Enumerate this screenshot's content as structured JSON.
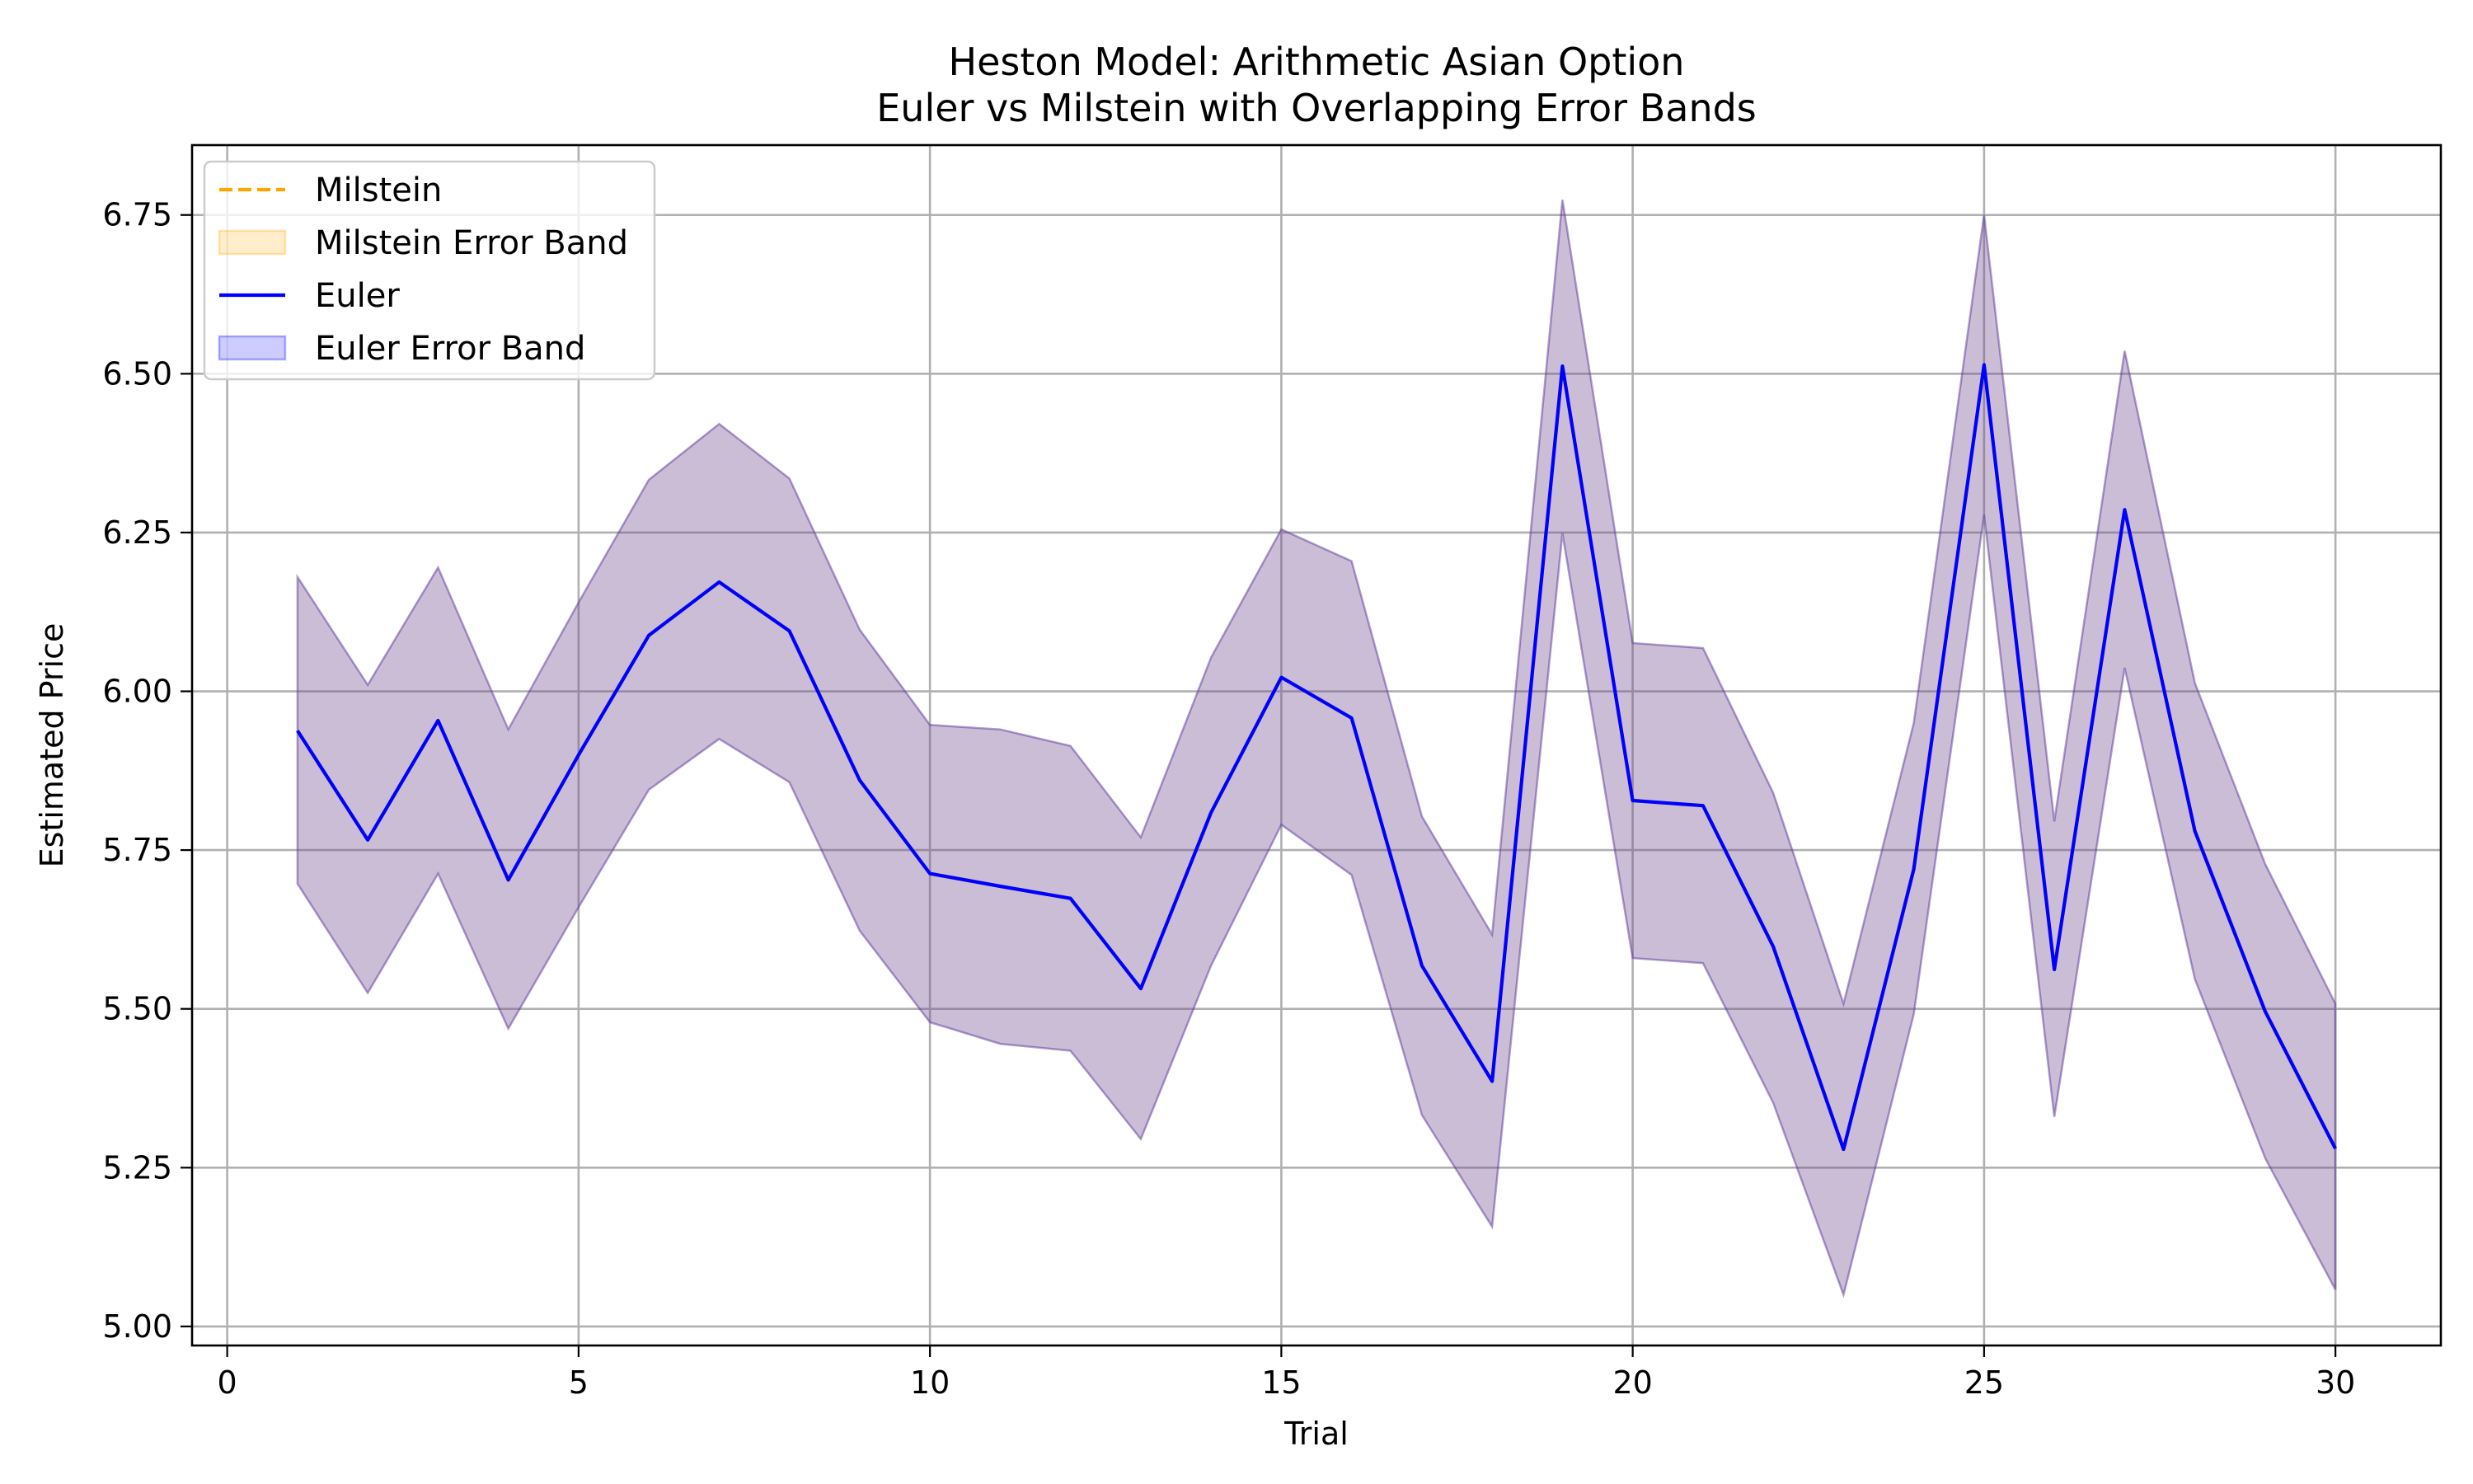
{
  "chart_data": {
    "type": "line",
    "title": "Heston Model: Arithmetic Asian Option",
    "subtitle": "Euler vs Milstein with Overlapping Error Bands",
    "xlabel": "Trial",
    "ylabel": "Estimated Price",
    "xlim": [
      -0.5,
      31.5
    ],
    "ylim": [
      4.97,
      6.86
    ],
    "xticks": [
      0,
      5,
      10,
      15,
      20,
      25,
      30
    ],
    "yticks": [
      5.0,
      5.25,
      5.5,
      5.75,
      6.0,
      6.25,
      6.5,
      6.75
    ],
    "grid": true,
    "legend_position": "top-left",
    "x": [
      1,
      2,
      3,
      4,
      5,
      6,
      7,
      8,
      9,
      10,
      11,
      12,
      13,
      14,
      15,
      16,
      17,
      18,
      19,
      20,
      21,
      22,
      23,
      24,
      25,
      26,
      27,
      28,
      29,
      30
    ],
    "series": [
      {
        "name": "Milstein",
        "style": "dashed",
        "color": "#ffa500",
        "values": [
          5.938,
          5.766,
          5.954,
          5.703,
          5.9,
          6.088,
          6.172,
          6.095,
          5.86,
          5.713,
          5.693,
          5.674,
          5.532,
          5.809,
          6.022,
          5.958,
          5.568,
          5.386,
          6.512,
          5.828,
          5.82,
          5.598,
          5.279,
          5.72,
          6.514,
          5.562,
          6.286,
          5.78,
          5.496,
          5.28
        ],
        "band_name": "Milstein Error Band",
        "band_color": "#ffa500",
        "lower": [
          5.697,
          5.525,
          5.713,
          5.469,
          5.66,
          5.845,
          5.925,
          5.857,
          5.623,
          5.479,
          5.445,
          5.434,
          5.295,
          5.568,
          5.79,
          5.711,
          5.333,
          5.157,
          6.249,
          5.58,
          5.572,
          5.352,
          5.05,
          5.492,
          6.278,
          5.33,
          6.037,
          5.547,
          5.265,
          5.058
        ],
        "upper": [
          6.18,
          6.01,
          6.195,
          5.94,
          6.14,
          6.333,
          6.421,
          6.335,
          6.097,
          5.947,
          5.94,
          5.914,
          5.77,
          6.053,
          6.255,
          6.205,
          5.803,
          5.617,
          6.774,
          6.076,
          6.068,
          5.84,
          5.508,
          5.95,
          6.75,
          5.795,
          6.536,
          6.013,
          5.728,
          5.508
        ]
      },
      {
        "name": "Euler",
        "style": "solid",
        "color": "#0000ff",
        "values": [
          5.938,
          5.766,
          5.954,
          5.703,
          5.9,
          6.088,
          6.172,
          6.095,
          5.86,
          5.713,
          5.693,
          5.674,
          5.532,
          5.809,
          6.022,
          5.958,
          5.568,
          5.386,
          6.512,
          5.828,
          5.82,
          5.598,
          5.279,
          5.72,
          6.514,
          5.562,
          6.286,
          5.78,
          5.496,
          5.28
        ],
        "band_name": "Euler Error Band",
        "band_color": "#0000ff",
        "lower": [
          5.697,
          5.525,
          5.713,
          5.469,
          5.66,
          5.845,
          5.925,
          5.857,
          5.623,
          5.479,
          5.445,
          5.434,
          5.295,
          5.568,
          5.79,
          5.711,
          5.333,
          5.157,
          6.249,
          5.58,
          5.572,
          5.352,
          5.05,
          5.492,
          6.278,
          5.33,
          6.037,
          5.547,
          5.265,
          5.058
        ],
        "upper": [
          6.18,
          6.01,
          6.195,
          5.94,
          6.14,
          6.333,
          6.421,
          6.335,
          6.097,
          5.947,
          5.94,
          5.914,
          5.77,
          6.053,
          6.255,
          6.205,
          5.803,
          5.617,
          6.774,
          6.076,
          6.068,
          5.84,
          5.508,
          5.95,
          6.75,
          5.795,
          6.536,
          6.013,
          5.728,
          5.508
        ]
      }
    ],
    "legend": [
      {
        "label": "Milstein",
        "kind": "dashed-line",
        "color": "#ffa500"
      },
      {
        "label": "Milstein Error Band",
        "kind": "patch",
        "color": "#ffa500"
      },
      {
        "label": "Euler",
        "kind": "line",
        "color": "#0000ff"
      },
      {
        "label": "Euler Error Band",
        "kind": "patch",
        "color": "#0000ff"
      }
    ]
  }
}
